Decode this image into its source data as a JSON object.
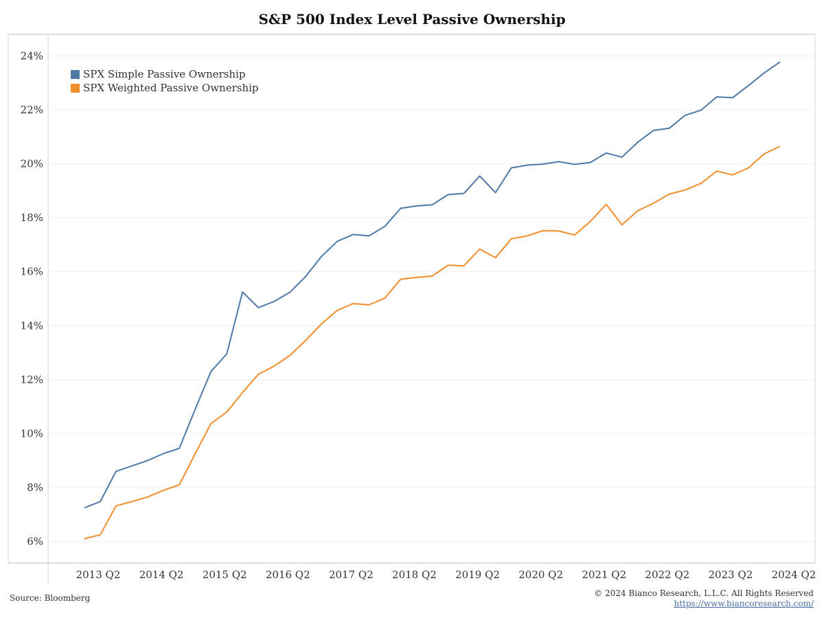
{
  "page": {
    "source": "Source: Bloomberg",
    "copyright": "© 2024 Bianco Research, L.L.C. All Rights Reserved",
    "link": "https://www.biancoresearch.com/"
  },
  "chart_data": {
    "type": "line",
    "title": "S&P 500 Index Level Passive Ownership",
    "xlabel": "",
    "ylabel": "",
    "x_tick_labels": [
      "2013 Q2",
      "2014 Q2",
      "2015 Q2",
      "2016 Q2",
      "2017 Q2",
      "2018 Q2",
      "2019 Q2",
      "2020 Q2",
      "2021 Q2",
      "2022 Q2",
      "2023 Q2",
      "2024 Q2"
    ],
    "y_tick_labels": [
      "6%",
      "8%",
      "10%",
      "12%",
      "14%",
      "16%",
      "18%",
      "20%",
      "22%",
      "24%"
    ],
    "ylim": [
      5.2,
      24.8
    ],
    "grid": "horizontal",
    "legend_position": "top-left",
    "x": [
      "2013 Q2",
      "2013 Q3",
      "2013 Q4",
      "2014 Q1",
      "2014 Q2",
      "2014 Q3",
      "2014 Q4",
      "2015 Q1",
      "2015 Q2",
      "2015 Q3",
      "2015 Q4",
      "2016 Q1",
      "2016 Q2",
      "2016 Q3",
      "2016 Q4",
      "2017 Q1",
      "2017 Q2",
      "2017 Q3",
      "2017 Q4",
      "2018 Q1",
      "2018 Q2",
      "2018 Q3",
      "2018 Q4",
      "2019 Q1",
      "2019 Q2",
      "2019 Q3",
      "2019 Q4",
      "2020 Q1",
      "2020 Q2",
      "2020 Q3",
      "2020 Q4",
      "2021 Q1",
      "2021 Q2",
      "2021 Q3",
      "2021 Q4",
      "2022 Q1",
      "2022 Q2",
      "2022 Q3",
      "2022 Q4",
      "2023 Q1",
      "2023 Q2",
      "2023 Q3",
      "2023 Q4",
      "2024 Q1",
      "2024 Q2"
    ],
    "series": [
      {
        "name": "SPX Simple Passive Ownership",
        "color": "#4e79a7",
        "values": [
          7.25,
          7.48,
          8.6,
          8.8,
          9.0,
          9.26,
          9.45,
          10.9,
          12.3,
          12.95,
          15.25,
          14.67,
          14.9,
          15.24,
          15.83,
          16.57,
          17.13,
          17.38,
          17.33,
          17.68,
          18.35,
          18.44,
          18.48,
          18.86,
          18.9,
          19.55,
          18.93,
          19.85,
          19.95,
          19.99,
          20.08,
          19.98,
          20.05,
          20.4,
          20.25,
          20.8,
          21.24,
          21.32,
          21.8,
          21.99,
          22.48,
          22.45,
          22.9,
          23.37,
          23.78
        ]
      },
      {
        "name": "SPX Weighted Passive Ownership",
        "color": "#f28e2b",
        "values": [
          6.1,
          6.25,
          7.32,
          7.48,
          7.65,
          7.9,
          8.1,
          9.25,
          10.37,
          10.8,
          11.52,
          12.2,
          12.5,
          12.9,
          13.46,
          14.07,
          14.57,
          14.82,
          14.77,
          15.02,
          15.72,
          15.79,
          15.84,
          16.24,
          16.22,
          16.84,
          16.52,
          17.22,
          17.33,
          17.52,
          17.51,
          17.36,
          17.86,
          18.5,
          17.74,
          18.26,
          18.54,
          18.88,
          19.03,
          19.28,
          19.73,
          19.59,
          19.85,
          20.37,
          20.65
        ]
      }
    ]
  }
}
